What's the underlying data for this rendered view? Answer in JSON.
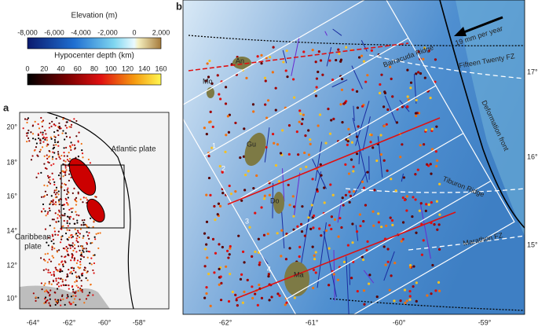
{
  "colorbars": [
    {
      "title": "Elevation (m)",
      "ticks": [
        "-8,000",
        "-6,000",
        "-4,000",
        "-2,000",
        "0",
        "2,000"
      ]
    },
    {
      "title": "Hypocenter depth (km)",
      "ticks": [
        "0",
        "20",
        "40",
        "60",
        "80",
        "100",
        "120",
        "140",
        "160"
      ]
    }
  ],
  "panels": [
    {
      "label": "a",
      "lat_labels": [
        "20°",
        "18°",
        "16°",
        "14°",
        "12°",
        "10°"
      ],
      "lon_labels": [
        "-64°",
        "-62°",
        "-60°",
        "-58°"
      ],
      "annotations": [
        "Atlantic plate",
        "Caribbean",
        "plate"
      ]
    },
    {
      "label": "b",
      "lat_labels": [
        "17°",
        "16°",
        "15°"
      ],
      "lon_labels": [
        "-62°",
        "-61°",
        "-60°",
        "-59°"
      ],
      "annotations": [
        "19 mm per year",
        "Fifteen Twenty FZ",
        "Barracuda Ridge",
        "Deformation front",
        "Tiburon Ridge",
        "Marathon FZ"
      ],
      "islands": [
        "An",
        "Mo",
        "Gu",
        "Do",
        "Ma"
      ],
      "segments": [
        "1",
        "2",
        "3",
        "4"
      ]
    }
  ]
}
